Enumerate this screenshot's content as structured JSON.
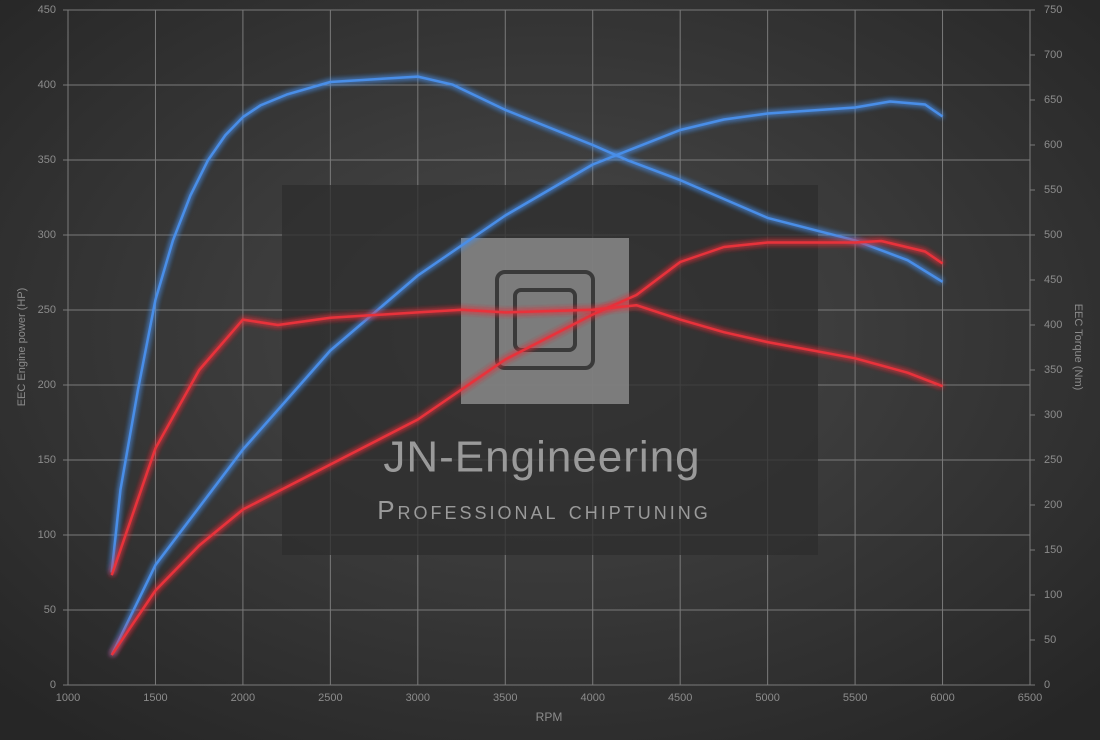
{
  "chart_data": {
    "type": "line",
    "xlabel": "RPM",
    "ylabel": "EEC Engine power (HP)",
    "y2label": "EEC Torque (Nm)",
    "watermark": {
      "title": "JN-Engineering",
      "subtitle": "Professional chiptuning"
    },
    "xlim": [
      1000,
      6500
    ],
    "xticks": [
      1000,
      1500,
      2000,
      2500,
      3000,
      3500,
      4000,
      4500,
      5000,
      5500,
      6000,
      6500
    ],
    "ylim": [
      0,
      450
    ],
    "yticks": [
      0,
      50,
      100,
      150,
      200,
      250,
      300,
      350,
      400,
      450
    ],
    "y2lim": [
      0,
      750
    ],
    "y2ticks": [
      0,
      50,
      100,
      150,
      200,
      250,
      300,
      350,
      400,
      450,
      500,
      550,
      600,
      650,
      700,
      750
    ],
    "grid": true,
    "series": [
      {
        "color": "#4a8ee8",
        "axis": "y",
        "x": [
          1250,
          1500,
          2000,
          2500,
          3000,
          3500,
          4000,
          4500,
          4750,
          5000,
          5500,
          5700,
          5900,
          6000
        ],
        "values": [
          20,
          80,
          157,
          223,
          273,
          313,
          347,
          370,
          377,
          381,
          385,
          389,
          387,
          379
        ]
      },
      {
        "color": "#4a8ee8",
        "axis": "y2",
        "x": [
          1250,
          1300,
          1400,
          1500,
          1600,
          1700,
          1800,
          1900,
          2000,
          2100,
          2250,
          2500,
          3000,
          3200,
          3500,
          4000,
          4200,
          4500,
          5000,
          5500,
          5800,
          6000
        ],
        "values": [
          125,
          217,
          328,
          428,
          494,
          544,
          583,
          611,
          631,
          644,
          656,
          670,
          676,
          667,
          639,
          600,
          583,
          561,
          519,
          494,
          472,
          448
        ]
      },
      {
        "color": "#e8333a",
        "axis": "y",
        "x": [
          1250,
          1500,
          1750,
          2000,
          2500,
          3000,
          3500,
          4000,
          4250,
          4500,
          4750,
          5000,
          5500,
          5650,
          5900,
          6000
        ],
        "values": [
          20,
          63,
          93,
          117,
          147,
          177,
          217,
          247,
          260,
          282,
          292,
          295,
          295,
          296,
          289,
          281
        ]
      },
      {
        "color": "#e8333a",
        "axis": "y2",
        "x": [
          1250,
          1500,
          1750,
          2000,
          2200,
          2500,
          3000,
          3250,
          3500,
          4000,
          4250,
          4500,
          4750,
          5000,
          5500,
          5800,
          6000
        ],
        "values": [
          122,
          263,
          350,
          406,
          400,
          408,
          414,
          417,
          414,
          417,
          422,
          406,
          392,
          381,
          363,
          347,
          332
        ]
      }
    ]
  }
}
